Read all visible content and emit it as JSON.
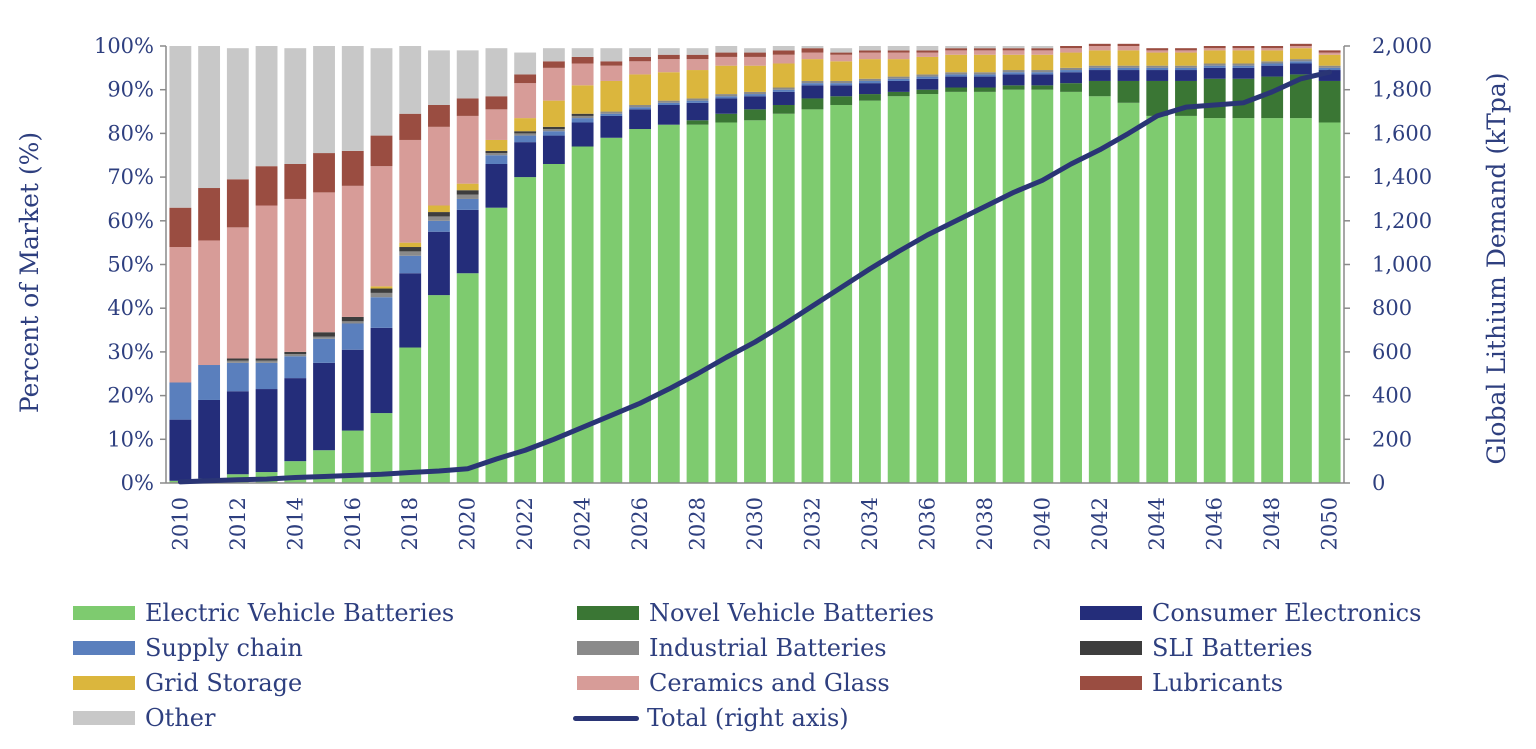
{
  "chart_data": {
    "type": "bar",
    "stacked": true,
    "secondary_line": true,
    "categories": [
      "2010",
      "2011",
      "2012",
      "2013",
      "2014",
      "2015",
      "2016",
      "2017",
      "2018",
      "2019",
      "2020",
      "2021",
      "2022",
      "2023",
      "2024",
      "2025",
      "2026",
      "2027",
      "2028",
      "2029",
      "2030",
      "2031",
      "2032",
      "2033",
      "2034",
      "2035",
      "2036",
      "2037",
      "2038",
      "2039",
      "2040",
      "2041",
      "2042",
      "2043",
      "2044",
      "2045",
      "2046",
      "2047",
      "2048",
      "2049",
      "2050"
    ],
    "x_tick_labels": [
      "2010",
      "2012",
      "2014",
      "2016",
      "2018",
      "2020",
      "2022",
      "2024",
      "2026",
      "2028",
      "2030",
      "2032",
      "2034",
      "2036",
      "2038",
      "2040",
      "2042",
      "2044",
      "2046",
      "2048",
      "2050"
    ],
    "ylabel": "Percent of Market (%)",
    "ylim": [
      0,
      100
    ],
    "y_tick_labels": [
      "0%",
      "10%",
      "20%",
      "30%",
      "40%",
      "50%",
      "60%",
      "70%",
      "80%",
      "90%",
      "100%"
    ],
    "y2label": "Global Lithium Demand (kTpa)",
    "y2lim": [
      0,
      2000
    ],
    "y2_tick_labels": [
      "0",
      "200",
      "400",
      "600",
      "800",
      "1,000",
      "1,200",
      "1,400",
      "1,600",
      "1,800",
      "2,000"
    ],
    "grid": false,
    "legend_position": "bottom",
    "series": [
      {
        "name": "Electric Vehicle Batteries",
        "color": "#7ecb6f",
        "values": [
          0.5,
          1,
          2,
          2.5,
          5,
          7.5,
          12,
          16,
          31,
          43,
          48,
          63,
          70,
          73,
          77,
          79,
          81,
          82,
          82,
          82.5,
          83,
          84.5,
          85.5,
          86.5,
          87.5,
          88.5,
          89,
          89.5,
          89.5,
          90,
          90,
          89.5,
          88.5,
          87,
          84,
          84,
          83.5,
          83.5,
          83.5,
          83.5,
          82.5
        ]
      },
      {
        "name": "Novel Vehicle Batteries",
        "color": "#3a7634",
        "values": [
          0,
          0,
          0,
          0,
          0,
          0,
          0,
          0,
          0,
          0,
          0,
          0,
          0,
          0,
          0,
          0,
          0,
          0,
          1,
          2,
          2.5,
          2,
          2.5,
          2,
          1.5,
          1,
          1,
          1,
          1,
          1,
          1,
          2,
          3.5,
          5,
          8,
          8,
          9,
          9,
          9.5,
          10,
          9.5
        ]
      },
      {
        "name": "Consumer Electronics",
        "color": "#242d7a",
        "values": [
          14,
          18,
          19,
          19,
          19,
          20,
          18.5,
          19.5,
          17,
          14.5,
          14.5,
          10,
          8,
          6.5,
          5.5,
          5,
          4.5,
          4.5,
          4,
          3.5,
          3,
          3,
          3,
          2.5,
          2.5,
          2.5,
          2.5,
          2.5,
          2.5,
          2.5,
          2.5,
          2.5,
          2.5,
          2.5,
          2.5,
          2.5,
          2.5,
          2.5,
          2.5,
          2.5,
          2.5
        ]
      },
      {
        "name": "Supply chain",
        "color": "#5a7fbd",
        "values": [
          8.5,
          8,
          6.5,
          6,
          5,
          5.5,
          6,
          7,
          4,
          2.5,
          2.5,
          2,
          1.5,
          1,
          1,
          0.5,
          0.5,
          0.5,
          0.5,
          0.5,
          0.5,
          0.5,
          0.5,
          0.5,
          0.5,
          0.5,
          0.5,
          0.5,
          0.5,
          0.5,
          0.5,
          0.5,
          0.5,
          0.5,
          0.5,
          0.5,
          0.5,
          0.5,
          0.5,
          0.5,
          0.5
        ]
      },
      {
        "name": "Industrial Batteries",
        "color": "#8a8a8a",
        "values": [
          0,
          0,
          0.5,
          0.5,
          0.5,
          0.5,
          0.5,
          1,
          1,
          1,
          1,
          0.5,
          0.5,
          0.5,
          0.5,
          0.5,
          0.5,
          0.5,
          0.5,
          0.5,
          0.5,
          0.5,
          0.5,
          0.5,
          0.5,
          0.5,
          0.5,
          0.5,
          0.5,
          0.5,
          0.5,
          0.5,
          0.5,
          0.5,
          0.5,
          0.5,
          0.5,
          0.5,
          0.5,
          0.5,
          0.5
        ]
      },
      {
        "name": "SLI Batteries",
        "color": "#3d3d3d",
        "values": [
          0,
          0,
          0.5,
          0.5,
          0.5,
          1,
          1,
          1,
          1,
          1,
          1,
          0.5,
          0.5,
          0.5,
          0.5,
          0,
          0,
          0,
          0,
          0,
          0,
          0,
          0,
          0,
          0,
          0,
          0,
          0,
          0,
          0,
          0,
          0,
          0,
          0,
          0,
          0,
          0,
          0,
          0,
          0,
          0
        ]
      },
      {
        "name": "Grid Storage",
        "color": "#dbb63d",
        "values": [
          0,
          0,
          0,
          0,
          0,
          0,
          0,
          0.5,
          1,
          1.5,
          1.5,
          2.5,
          3,
          6,
          6.5,
          7,
          7,
          6.5,
          6.5,
          6.5,
          6,
          5.5,
          5,
          4.5,
          4.5,
          4,
          4,
          4,
          4,
          3.5,
          3.5,
          3.5,
          3.5,
          3.5,
          3,
          3,
          3,
          3,
          2.5,
          2.5,
          2.5
        ]
      },
      {
        "name": "Ceramics and Glass",
        "color": "#d79c98",
        "values": [
          31,
          28.5,
          30,
          35,
          35,
          32,
          30,
          27.5,
          23.5,
          18,
          15.5,
          7,
          8,
          7.5,
          5,
          3.5,
          3,
          3,
          2.5,
          2,
          2,
          2,
          1.5,
          1.5,
          1.5,
          1.5,
          1,
          1,
          1,
          1,
          1,
          1,
          1,
          1,
          0.5,
          0.5,
          0.5,
          0.5,
          0.5,
          0.5,
          0.5
        ]
      },
      {
        "name": "Lubricants",
        "color": "#9a4d41",
        "values": [
          9,
          12,
          11,
          9,
          8,
          9,
          8,
          7,
          6,
          5,
          4,
          3,
          2,
          1.5,
          1.5,
          1,
          1,
          1,
          1,
          1,
          1,
          1,
          1,
          0.5,
          0.5,
          0.5,
          0.5,
          0.5,
          0.5,
          0.5,
          0.5,
          0.5,
          0.5,
          0.5,
          0.5,
          0.5,
          0.5,
          0.5,
          0.5,
          0.5,
          0.5
        ]
      },
      {
        "name": "Other",
        "color": "#c8c8c8",
        "values": [
          37,
          32.5,
          30,
          27.5,
          26.5,
          24.5,
          24,
          20,
          15.5,
          12.5,
          11,
          11,
          5,
          3,
          2,
          3,
          2,
          1.5,
          1.5,
          1.5,
          1,
          1,
          0.5,
          1,
          1,
          1,
          1,
          0.5,
          0.5,
          0.5,
          0.5,
          0,
          0,
          0,
          0,
          0,
          0,
          0,
          0,
          0,
          0
        ]
      }
    ],
    "line": {
      "name": "Total (right axis)",
      "color": "#2a3575",
      "axis": "right",
      "values": [
        5,
        10,
        15,
        18,
        25,
        30,
        35,
        40,
        48,
        55,
        65,
        110,
        150,
        200,
        255,
        310,
        365,
        430,
        500,
        575,
        645,
        725,
        810,
        895,
        980,
        1060,
        1135,
        1200,
        1265,
        1330,
        1385,
        1460,
        1525,
        1600,
        1680,
        1720,
        1730,
        1740,
        1790,
        1850,
        1880
      ]
    }
  },
  "legend": {
    "items": [
      {
        "label": "Electric Vehicle Batteries",
        "color": "#7ecb6f",
        "kind": "bar"
      },
      {
        "label": "Novel Vehicle Batteries",
        "color": "#3a7634",
        "kind": "bar"
      },
      {
        "label": "Consumer Electronics",
        "color": "#242d7a",
        "kind": "bar"
      },
      {
        "label": "Supply chain",
        "color": "#5a7fbd",
        "kind": "bar"
      },
      {
        "label": "Industrial Batteries",
        "color": "#8a8a8a",
        "kind": "bar"
      },
      {
        "label": "SLI Batteries",
        "color": "#3d3d3d",
        "kind": "bar"
      },
      {
        "label": "Grid Storage",
        "color": "#dbb63d",
        "kind": "bar"
      },
      {
        "label": "Ceramics and Glass",
        "color": "#d79c98",
        "kind": "bar"
      },
      {
        "label": "Lubricants",
        "color": "#9a4d41",
        "kind": "bar"
      },
      {
        "label": "Other",
        "color": "#c8c8c8",
        "kind": "bar"
      },
      {
        "label": "Total (right axis)",
        "color": "#2a3575",
        "kind": "line"
      }
    ]
  }
}
